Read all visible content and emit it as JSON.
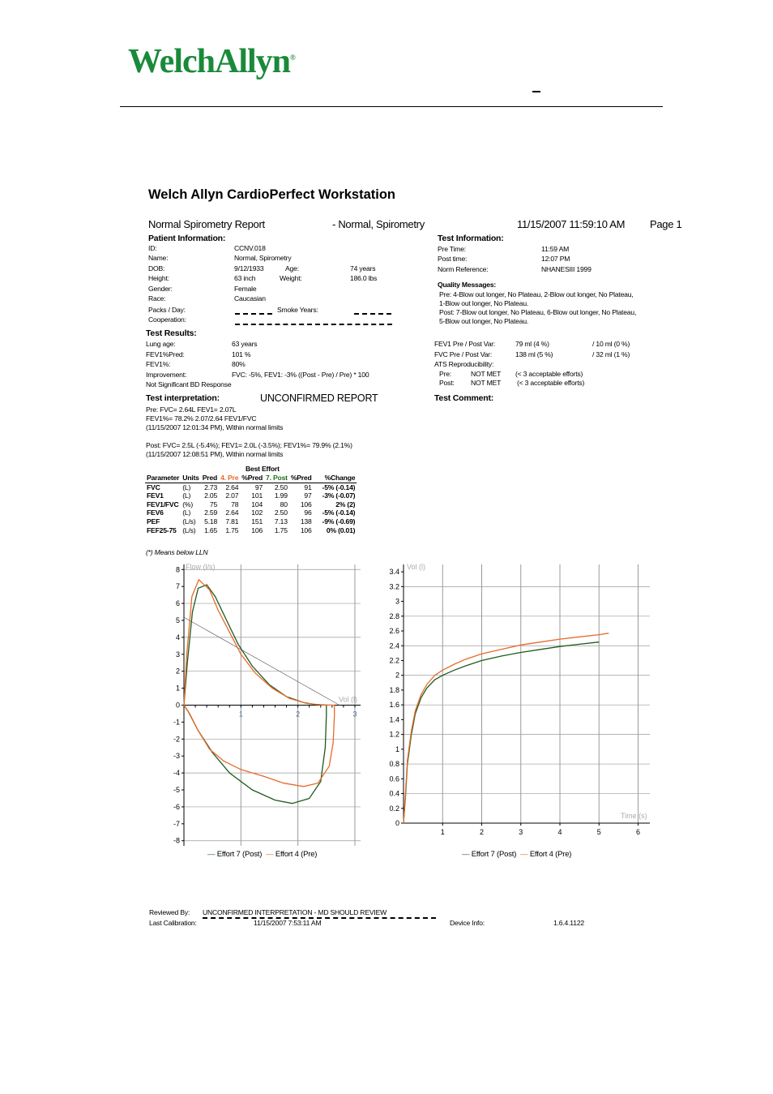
{
  "logo": {
    "text": "WelchAllyn",
    "reg": "®"
  },
  "title": "Welch Allyn CardioPerfect Workstation",
  "header": {
    "report_name": "Normal Spirometry Report",
    "patient_summary": "- Normal, Spirometry",
    "datetime": "11/15/2007 11:59:10 AM",
    "page": "Page 1"
  },
  "patient": {
    "heading": "Patient Information:",
    "id_label": "ID:",
    "id": "CCNV.018",
    "name_label": "Name:",
    "name": "Normal, Spirometry",
    "dob_label": "DOB:",
    "dob": "9/12/1933",
    "age_label": "Age:",
    "age": "74 years",
    "height_label": "Height:",
    "height": "63 inch",
    "weight_label": "Weight:",
    "weight": "186.0 lbs",
    "gender_label": "Gender:",
    "gender": "Female",
    "race_label": "Race:",
    "race": "Caucasian",
    "packs_label": "Packs / Day:",
    "smoke_label": "Smoke Years:",
    "coop_label": "Cooperation:"
  },
  "test_info": {
    "heading": "Test Information:",
    "pre_label": "Pre Time:",
    "pre": "11:59 AM",
    "post_label": "Post time:",
    "post": "12:07 PM",
    "norm_label": "Norm Reference:",
    "norm": "NHANESIII 1999"
  },
  "quality": {
    "heading": "Quality Messages:",
    "lines": [
      "Pre: 4-Blow out longer, No Plateau, 2-Blow out longer, No Plateau,",
      "1-Blow out longer, No Plateau.",
      "Post: 7-Blow out longer, No Plateau, 6-Blow out longer, No Plateau,",
      "5-Blow out longer, No Plateau."
    ]
  },
  "results": {
    "heading": "Test Results:",
    "lung_age_label": "Lung age:",
    "lung_age": "63 years",
    "fev1pred_label": "FEV1%Pred:",
    "fev1pred": "101 %",
    "fev1pct_label": "FEV1%:",
    "fev1pct": "80%",
    "improvement_label": "Improvement:",
    "improvement": "FVC: -5%, FEV1: -3% ((Post - Pre) / Pre) * 100",
    "bd": "Not Significant BD Response"
  },
  "variability": {
    "fev1_label": "FEV1 Pre / Post Var:",
    "fev1_a": "79 ml (4 %)",
    "fev1_b": "/ 10 ml (0 %)",
    "fvc_label": "FVC Pre / Post Var:",
    "fvc_a": "138 ml (5 %)",
    "fvc_b": "/ 32 ml (1 %)",
    "ats_label": "ATS Reproducibility:",
    "pre_label": "Pre:",
    "pre_val": "NOT MET",
    "pre_note": "(< 3 acceptable efforts)",
    "post_label": "Post:",
    "post_val": "NOT MET",
    "post_note": "(< 3 acceptable efforts)"
  },
  "interp": {
    "heading": "Test interpretation:",
    "status": "UNCONFIRMED REPORT",
    "lines": [
      "Pre: FVC= 2.64L FEV1= 2.07L",
      "FEV1%= 78.2% 2.07/2.64 FEV1/FVC",
      "(11/15/2007 12:01:34 PM), Within normal limits",
      "Post: FVC= 2.5L (-5.4%); FEV1= 2.0L (-3.5%); FEV1%= 79.9% (2.1%)",
      "(11/15/2007 12:08:51 PM), Within normal limits"
    ],
    "comment_heading": "Test Comment:"
  },
  "table": {
    "best_effort": "Best Effort",
    "headers": [
      "Parameter",
      "Units",
      "Pred",
      "4. Pre",
      "%Pred",
      "7. Post",
      "%Pred",
      "%Change"
    ],
    "rows": [
      [
        "FVC",
        "(L)",
        "2.73",
        "2.64",
        "97",
        "2.50",
        "91",
        "-5% (-0.14)"
      ],
      [
        "FEV1",
        "(L)",
        "2.05",
        "2.07",
        "101",
        "1.99",
        "97",
        "-3% (-0.07)"
      ],
      [
        "FEV1/FVC",
        "(%)",
        "75",
        "78",
        "104",
        "80",
        "106",
        "2% (2)"
      ],
      [
        "FEV6",
        "(L)",
        "2.59",
        "2.64",
        "102",
        "2.50",
        "96",
        "-5% (-0.14)"
      ],
      [
        "PEF",
        "(L/s)",
        "5.18",
        "7.81",
        "151",
        "7.13",
        "138",
        "-9% (-0.69)"
      ],
      [
        "FEF25-75",
        "(L/s)",
        "1.65",
        "1.75",
        "106",
        "1.75",
        "106",
        "0% (0.01)"
      ]
    ],
    "footnote": "(*) Means below LLN"
  },
  "colors": {
    "pre": "#e86a2a",
    "post": "#1f5a1f",
    "grid": "#9a9a9a"
  },
  "chart_data": [
    {
      "type": "line",
      "xlabel": "Vol (l)",
      "ylabel": "Flow (l/s)",
      "xlim": [
        0,
        3.1
      ],
      "ylim": [
        -8.3,
        8.3
      ],
      "x_ticks": [
        1,
        2,
        3
      ],
      "y_ticks": [
        8,
        7,
        6,
        5,
        4,
        3,
        2,
        1,
        0,
        -1,
        -2,
        -3,
        -4,
        -5,
        -6,
        -7,
        -8
      ],
      "series": [
        {
          "name": "Effort 7 (Post)",
          "color": "#1f5a1f",
          "x": [
            0,
            0.06,
            0.15,
            0.25,
            0.4,
            0.55,
            0.75,
            0.95,
            1.2,
            1.5,
            1.8,
            2.1,
            2.3,
            2.5,
            2.5,
            2.48,
            2.4,
            2.2,
            1.9,
            1.6,
            1.2,
            0.8,
            0.5,
            0.25,
            0.08,
            0
          ],
          "y": [
            0,
            2.5,
            5.5,
            6.9,
            7.1,
            6.4,
            5.0,
            3.6,
            2.3,
            1.2,
            0.5,
            0.15,
            0.05,
            0,
            -0.6,
            -2.5,
            -4.5,
            -5.5,
            -5.8,
            -5.6,
            -5.0,
            -4.0,
            -2.8,
            -1.5,
            -0.4,
            0
          ]
        },
        {
          "name": "Effort 4 (Pre)",
          "color": "#e86a2a",
          "x": [
            0,
            0.05,
            0.14,
            0.26,
            0.45,
            0.6,
            0.8,
            1.0,
            1.25,
            1.55,
            1.85,
            2.15,
            2.4,
            2.64,
            2.64,
            2.62,
            2.55,
            2.35,
            2.1,
            1.75,
            1.4,
            1.0,
            0.7,
            0.45,
            0.25,
            0.1,
            0
          ],
          "y": [
            0,
            3.0,
            6.4,
            7.4,
            6.8,
            5.6,
            4.3,
            3.0,
            1.9,
            1.0,
            0.4,
            0.1,
            0.02,
            0,
            -0.6,
            -2.2,
            -3.6,
            -4.6,
            -4.8,
            -4.6,
            -4.2,
            -3.8,
            -3.3,
            -2.6,
            -1.5,
            -0.5,
            0
          ]
        }
      ]
    },
    {
      "type": "line",
      "xlabel": "Time (s)",
      "ylabel": "Vol (l)",
      "xlim": [
        0,
        6.3
      ],
      "ylim": [
        0,
        3.5
      ],
      "x_ticks": [
        1,
        2,
        3,
        4,
        5,
        6
      ],
      "y_ticks": [
        3.4,
        3.2,
        3,
        2.8,
        2.6,
        2.4,
        2.2,
        2,
        1.8,
        1.6,
        1.4,
        1.2,
        1,
        0.8,
        0.6,
        0.4,
        0.2,
        0
      ],
      "series": [
        {
          "name": "Effort 7 (Post)",
          "color": "#1f5a1f",
          "x": [
            0,
            0.05,
            0.1,
            0.2,
            0.3,
            0.45,
            0.6,
            0.8,
            1.0,
            1.3,
            1.6,
            2.0,
            2.5,
            3.0,
            3.5,
            4.0,
            4.5,
            5.0
          ],
          "y": [
            0,
            0.35,
            0.8,
            1.2,
            1.48,
            1.7,
            1.83,
            1.94,
            2.0,
            2.07,
            2.13,
            2.2,
            2.26,
            2.31,
            2.35,
            2.39,
            2.42,
            2.45
          ]
        },
        {
          "name": "Effort 4 (Pre)",
          "color": "#e86a2a",
          "x": [
            0,
            0.05,
            0.1,
            0.2,
            0.3,
            0.45,
            0.6,
            0.8,
            1.0,
            1.3,
            1.6,
            2.0,
            2.5,
            3.0,
            3.5,
            4.0,
            4.5,
            5.0,
            5.25
          ],
          "y": [
            0,
            0.4,
            0.85,
            1.25,
            1.52,
            1.74,
            1.88,
            2.0,
            2.07,
            2.15,
            2.22,
            2.29,
            2.35,
            2.41,
            2.45,
            2.49,
            2.52,
            2.55,
            2.57
          ]
        }
      ]
    }
  ],
  "legend": {
    "post": "Effort 7 (Post)",
    "pre": "Effort 4 (Pre)"
  },
  "footer": {
    "reviewed_label": "Reviewed By:",
    "reviewed": "UNCONFIRMED INTERPRETATION - MD SHOULD REVIEW",
    "calib_label": "Last Calibration:",
    "calib": "11/15/2007 7:53:11 AM",
    "device_label": "Device Info:",
    "device": "1.6.4.1122"
  }
}
